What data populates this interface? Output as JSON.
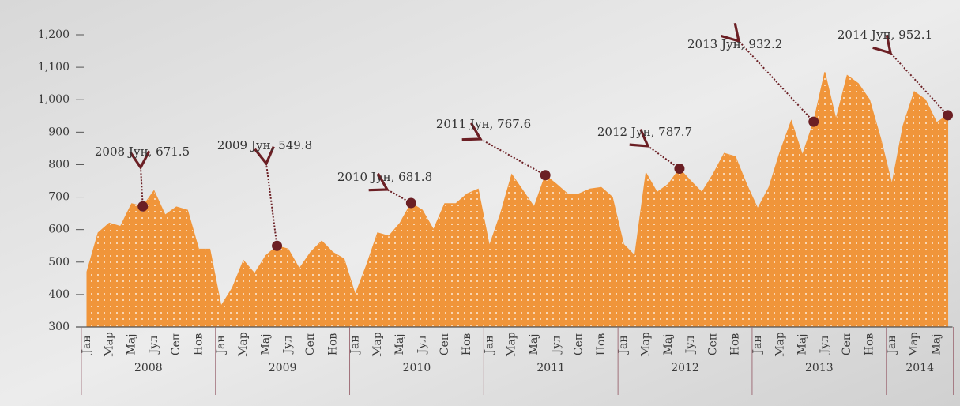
{
  "chart_data": {
    "type": "area",
    "categories": [
      "Јан",
      null,
      "Мар",
      null,
      "Мај",
      null,
      "Јул",
      null,
      "Сеп",
      null,
      "Нов",
      null,
      "Јан",
      null,
      "Мар",
      null,
      "Мај",
      null,
      "Јул",
      null,
      "Сеп",
      null,
      "Нов",
      null,
      "Јан",
      null,
      "Мар",
      null,
      "Мај",
      null,
      "Јул",
      null,
      "Сеп",
      null,
      "Нов",
      null,
      "Јан",
      null,
      "Мар",
      null,
      "Мај",
      null,
      "Јул",
      null,
      "Сеп",
      null,
      "Нов",
      null,
      "Јан",
      null,
      "Мар",
      null,
      "Мај",
      null,
      "Јул",
      null,
      "Сеп",
      null,
      "Нов",
      null,
      "Јан",
      null,
      "Мар",
      null,
      "Мај",
      null,
      "Јул",
      null,
      "Сеп",
      null,
      "Нов",
      null,
      "Јан",
      null,
      "Мар",
      null,
      "Мај",
      null
    ],
    "years": [
      "2008",
      "2009",
      "2010",
      "2011",
      "2012",
      "2013",
      "2014"
    ],
    "values": [
      470,
      590,
      620,
      610,
      680,
      671.5,
      720,
      645,
      670,
      660,
      540,
      540,
      365,
      420,
      505,
      465,
      520,
      549.8,
      540,
      480,
      530,
      565,
      530,
      510,
      400,
      490,
      590,
      580,
      620,
      681.8,
      660,
      600,
      680,
      680,
      710,
      725,
      550,
      650,
      770,
      720,
      670,
      767.6,
      740,
      710,
      710,
      725,
      730,
      700,
      555,
      520,
      775,
      715,
      740,
      787.7,
      750,
      715,
      770,
      835,
      825,
      740,
      665,
      730,
      840,
      935,
      830,
      932.2,
      1085,
      940,
      1075,
      1050,
      1000,
      880,
      740,
      920,
      1025,
      1000,
      930,
      952.1
    ],
    "color": "#f0953a",
    "annotations": [
      "2008 Јун, 671.5",
      "2009 Јун, 549.8",
      "2010 Јун, 681.8",
      "2011 Јун, 767.6",
      "2012 Јун, 787.7",
      "2013 Јун, 932.2",
      "2014 Јун, 952.1"
    ],
    "ylim": [
      300,
      1200
    ],
    "yticks": [
      300,
      400,
      500,
      600,
      700,
      800,
      900,
      {
        "value": 1000,
        "label": "1,000"
      },
      {
        "value": 1100,
        "label": "1,100"
      },
      {
        "value": 1200,
        "label": "1,200"
      }
    ]
  }
}
